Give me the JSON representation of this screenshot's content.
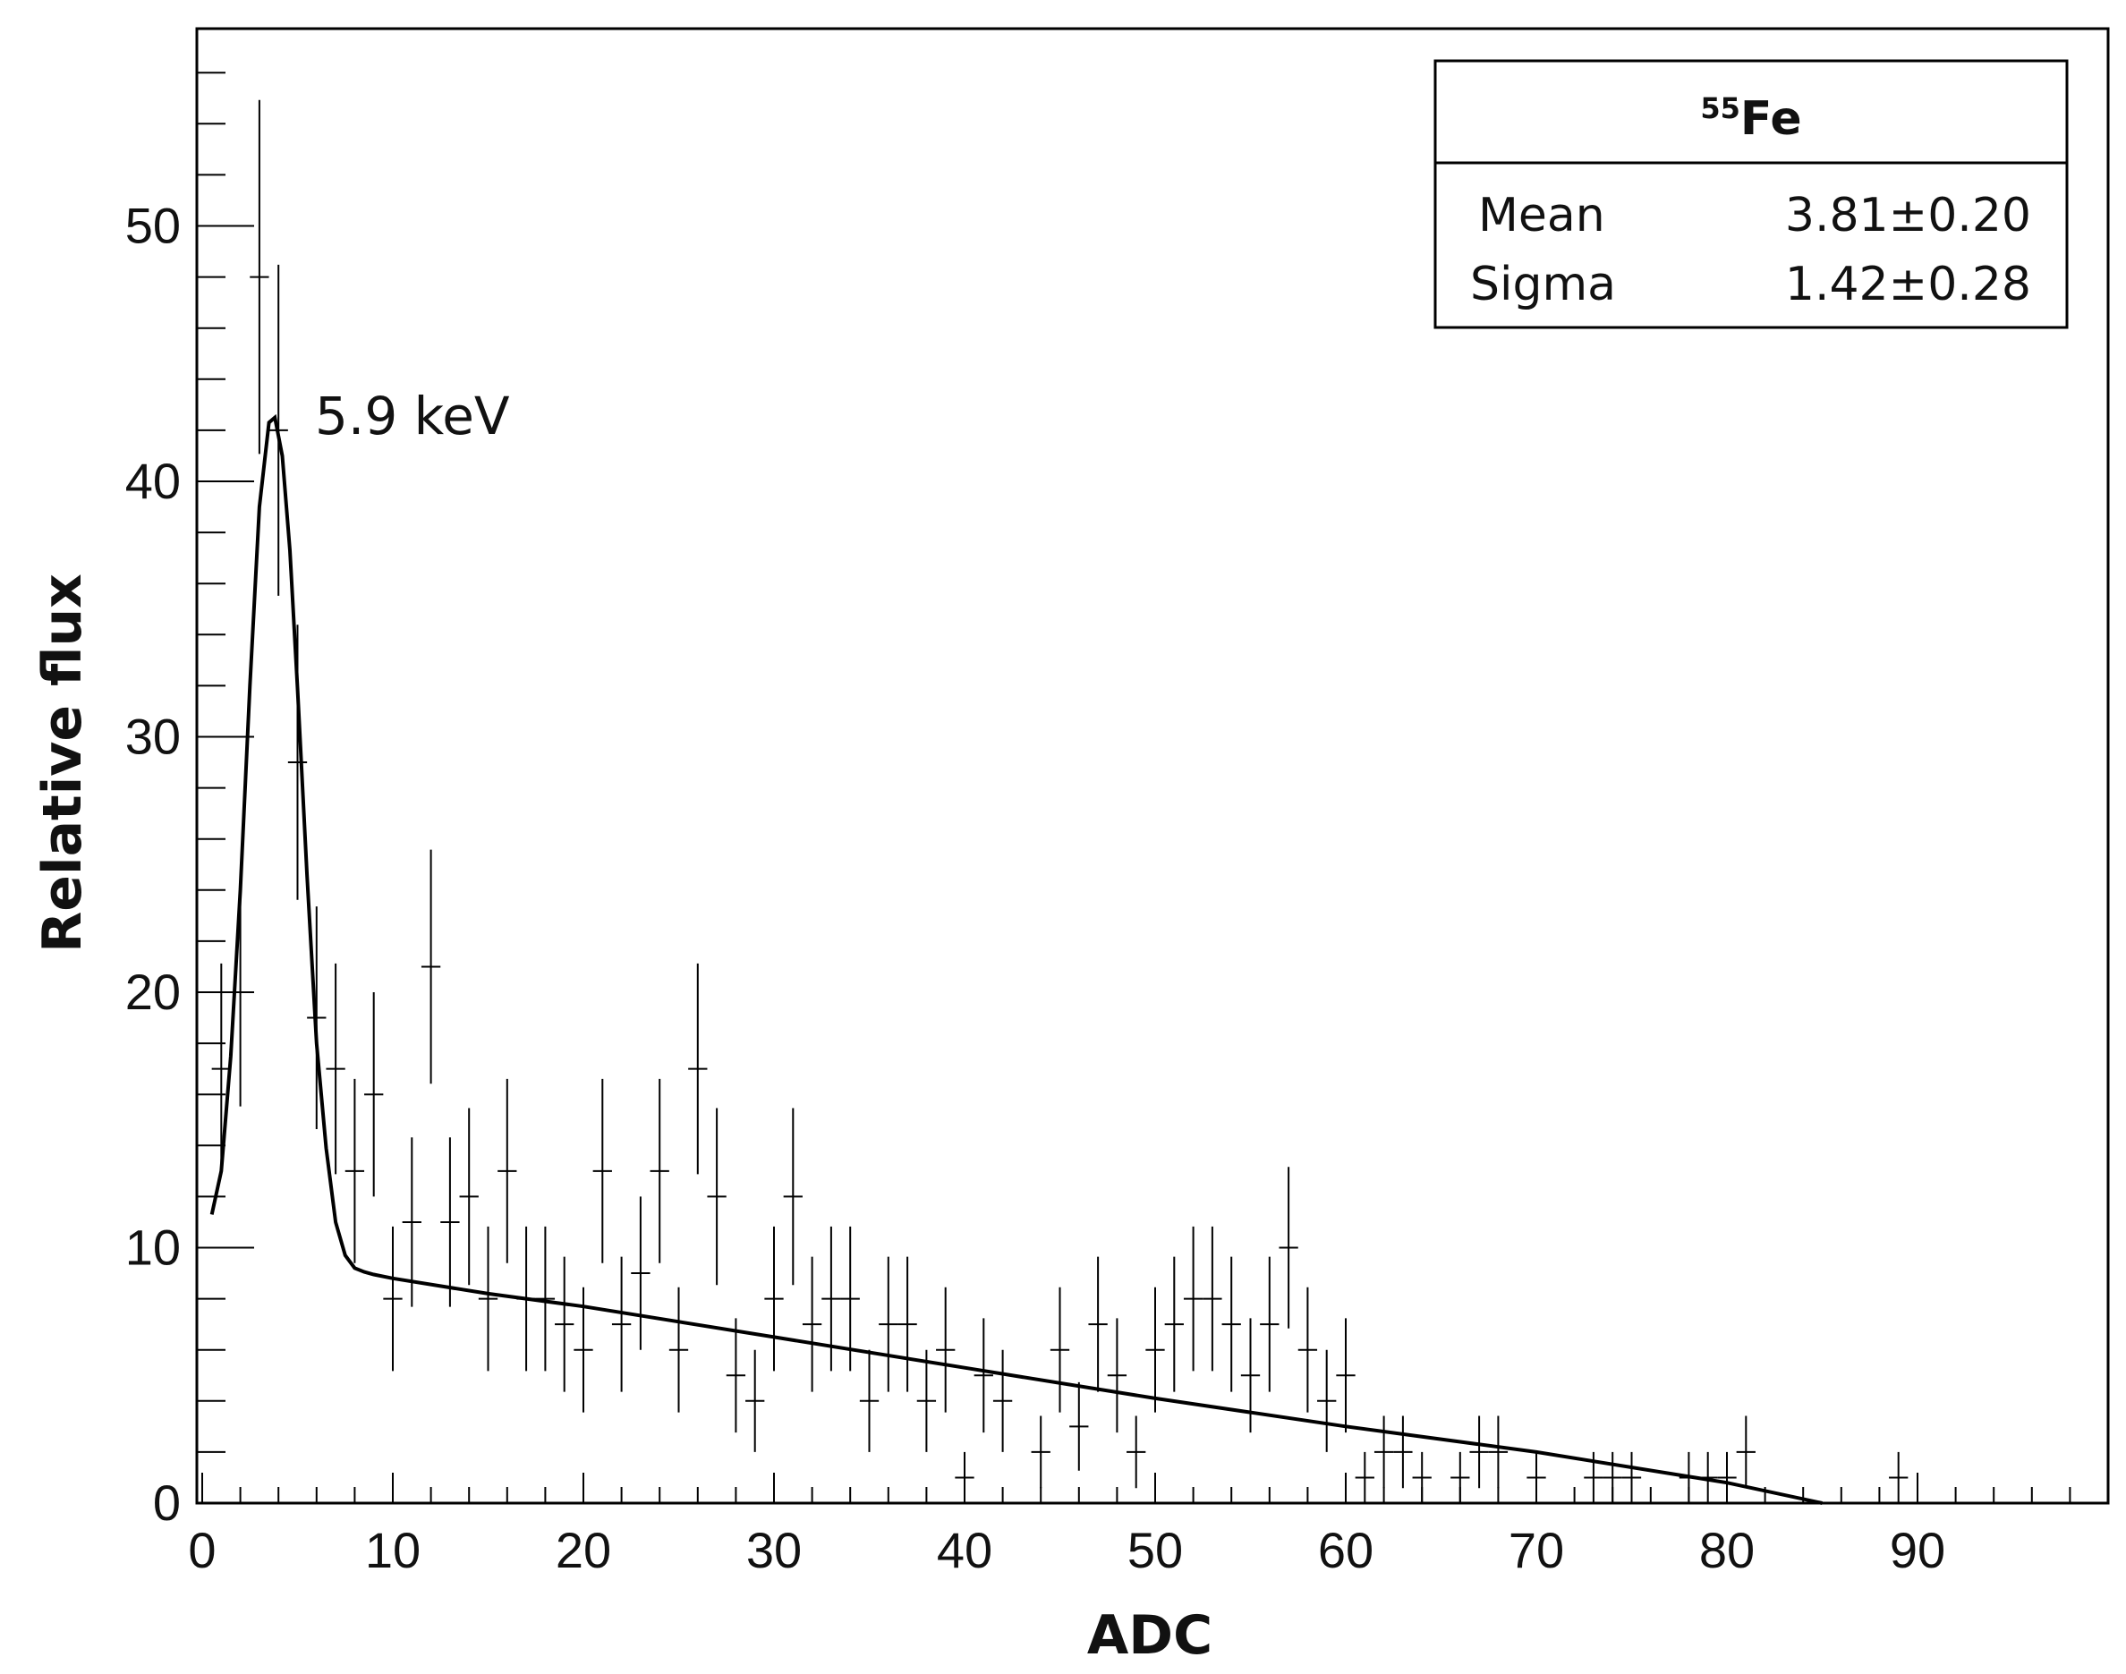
{
  "chart_data": {
    "type": "scatter",
    "title": "",
    "xlabel": "ADC",
    "ylabel": "Relative flux",
    "xlim": [
      0,
      99
    ],
    "ylim": [
      0,
      58
    ],
    "x_tick_labels": [
      "0",
      "10",
      "20",
      "30",
      "40",
      "50",
      "60",
      "70",
      "80",
      "90"
    ],
    "y_tick_labels": [
      "0",
      "10",
      "20",
      "30",
      "40",
      "50"
    ],
    "annotation": {
      "text": "5.9 keV",
      "x": 6,
      "y": 42
    },
    "stats_box": {
      "title_sup": "55",
      "title_main": "Fe",
      "rows": [
        {
          "name": "Mean",
          "value": "3.81±0.20"
        },
        {
          "name": "Sigma",
          "value": "1.42±0.28"
        }
      ]
    },
    "series": [
      {
        "name": "data",
        "style": "error-bar crosses",
        "x": [
          1,
          2,
          3,
          4,
          5,
          6,
          7,
          8,
          9,
          10,
          11,
          12,
          13,
          14,
          15,
          16,
          17,
          18,
          19,
          20,
          21,
          22,
          23,
          24,
          25,
          26,
          27,
          28,
          29,
          30,
          31,
          32,
          33,
          34,
          35,
          36,
          37,
          38,
          39,
          40,
          41,
          42,
          44,
          45,
          46,
          47,
          48,
          49,
          50,
          51,
          52,
          53,
          54,
          55,
          56,
          57,
          58,
          59,
          60,
          61,
          62,
          63,
          64,
          66,
          67,
          68,
          70,
          73,
          74,
          75,
          78,
          79,
          80,
          81,
          89
        ],
        "y": [
          17,
          20,
          48,
          42,
          29,
          19,
          17,
          13,
          16,
          8,
          11,
          21,
          11,
          12,
          8,
          13,
          8,
          8,
          7,
          6,
          13,
          7,
          9,
          13,
          6,
          17,
          12,
          5,
          4,
          8,
          12,
          7,
          8,
          8,
          4,
          7,
          7,
          4,
          6,
          1,
          5,
          4,
          2,
          6,
          3,
          7,
          5,
          2,
          6,
          7,
          8,
          8,
          7,
          5,
          7,
          10,
          6,
          4,
          5,
          1,
          2,
          2,
          1,
          1,
          2,
          2,
          1,
          1,
          1,
          1,
          1,
          1,
          1,
          2,
          1
        ]
      },
      {
        "name": "fit",
        "style": "line",
        "x": [
          0.5,
          1.0,
          1.5,
          2.0,
          2.5,
          3.0,
          3.5,
          3.81,
          4.2,
          4.6,
          5.0,
          5.5,
          6.0,
          6.5,
          7.0,
          7.5,
          8.0,
          8.5,
          9,
          10,
          15,
          20,
          30,
          40,
          50,
          60,
          70,
          80,
          85
        ],
        "y": [
          11.3,
          13.0,
          17.5,
          24.0,
          32.0,
          39.0,
          42.3,
          42.5,
          41.0,
          37.3,
          31.9,
          24.6,
          18.0,
          13.9,
          11.0,
          9.7,
          9.2,
          9.05,
          8.95,
          8.8,
          8.2,
          7.7,
          6.5,
          5.3,
          4.1,
          3.0,
          2.0,
          0.8,
          0.0
        ]
      }
    ]
  }
}
